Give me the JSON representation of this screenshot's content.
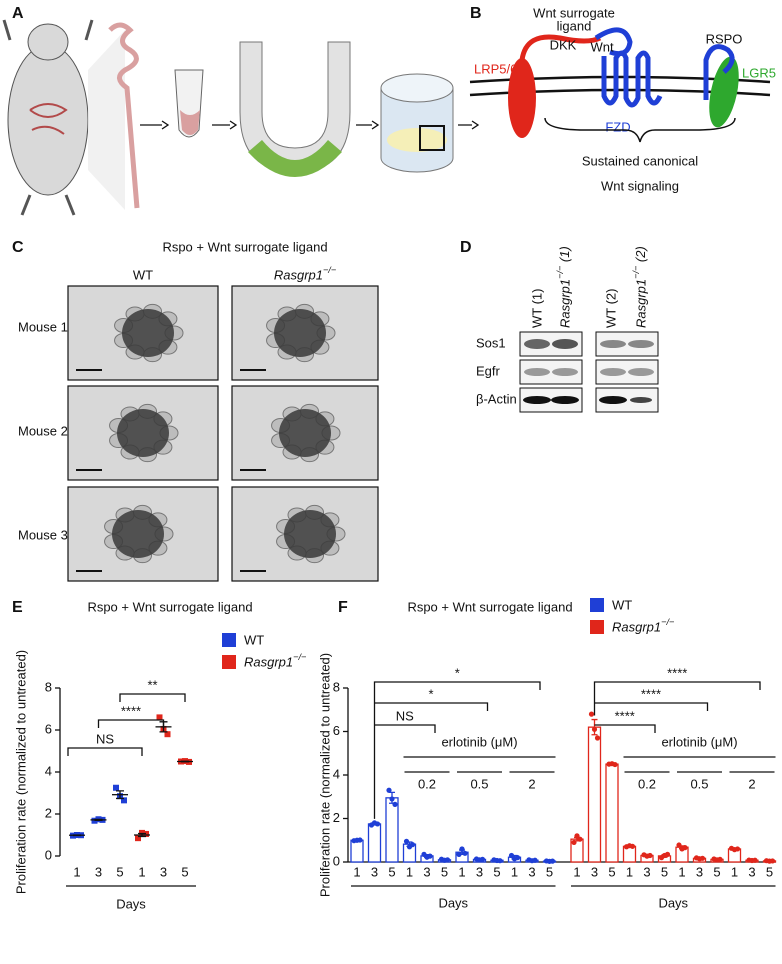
{
  "panels": {
    "A": {
      "label": "A"
    },
    "B": {
      "label": "B",
      "ligand": [
        "Wnt surrogate",
        "ligand"
      ],
      "dkk": "DKK",
      "wnt": "Wnt",
      "rspo": "RSPO",
      "lrp": "LRP5/6",
      "lgr5": "LGR5",
      "fzd": "FZD",
      "caption": [
        "Sustained canonical",
        "Wnt signaling"
      ]
    },
    "C": {
      "label": "C",
      "title": "Rspo + Wnt surrogate ligand",
      "columns": [
        "WT",
        "Rasgrp1−/−"
      ],
      "rows": [
        "Mouse 1",
        "Mouse 2",
        "Mouse 3"
      ]
    },
    "D": {
      "label": "D",
      "columns": [
        "WT (1)",
        "Rasgrp1−/− (1)",
        "WT (2)",
        "Rasgrp1−/− (2)"
      ],
      "rows": [
        "Sos1",
        "Egfr",
        "β-Actin"
      ]
    }
  },
  "chart_data": [
    {
      "type": "dot",
      "label": "E",
      "title": "Rspo + Wnt surrogate ligand",
      "y_label": "Proliferation rate (normalized to untreated)",
      "x_label": "Days",
      "categories": [
        "1",
        "3",
        "5"
      ],
      "ylim": [
        0,
        8
      ],
      "yticks": [
        0,
        2,
        4,
        6,
        8
      ],
      "significance": [
        "NS",
        "****",
        "**"
      ],
      "series": [
        {
          "name": "WT",
          "color": "#1f3fd6",
          "values": [
            0.99,
            1.72,
            2.92
          ],
          "errors": [
            0.01,
            0.02,
            0.18
          ],
          "points": [
            [
              0.97,
              1.0,
              0.99
            ],
            [
              1.68,
              1.75,
              1.72
            ],
            [
              3.25,
              2.85,
              2.65
            ]
          ]
        },
        {
          "name": "Rasgrp1−/−",
          "color": "#e0261b",
          "values": [
            1.0,
            6.15,
            4.5
          ],
          "errors": [
            0.07,
            0.24,
            0.01
          ],
          "points": [
            [
              0.85,
              1.1,
              1.05
            ],
            [
              6.6,
              6.05,
              5.8
            ],
            [
              4.5,
              4.52,
              4.48
            ]
          ]
        }
      ]
    },
    {
      "type": "bar",
      "label": "F",
      "title": "Rspo + Wnt surrogate ligand",
      "y_label": "Proliferation rate (normalized to untreated)",
      "x_label": "Days",
      "categories": [
        "1",
        "3",
        "5",
        "1",
        "3",
        "5",
        "1",
        "3",
        "5",
        "1",
        "3",
        "5"
      ],
      "treatment": "erlotinib (μM)",
      "doses": [
        "0.2",
        "0.5",
        "2"
      ],
      "ylim": [
        0,
        8
      ],
      "yticks": [
        0,
        2,
        4,
        6,
        8
      ],
      "series": [
        {
          "name": "WT",
          "color": "#1f3fd6",
          "values": [
            1.0,
            1.75,
            2.95,
            0.82,
            0.28,
            0.1,
            0.45,
            0.12,
            0.08,
            0.22,
            0.08,
            0.04
          ],
          "errors": [
            0.02,
            0.05,
            0.25,
            0.1,
            0.06,
            0.03,
            0.1,
            0.02,
            0.02,
            0.08,
            0.02,
            0.01
          ],
          "points": [
            [
              0.98,
              1.0,
              1.01
            ],
            [
              1.7,
              1.8,
              1.75
            ],
            [
              3.3,
              2.9,
              2.65
            ],
            [
              0.95,
              0.7,
              0.8
            ],
            [
              0.35,
              0.22,
              0.27
            ],
            [
              0.13,
              0.08,
              0.1
            ],
            [
              0.35,
              0.6,
              0.4
            ],
            [
              0.14,
              0.1,
              0.12
            ],
            [
              0.1,
              0.07,
              0.06
            ],
            [
              0.3,
              0.15,
              0.2
            ],
            [
              0.1,
              0.06,
              0.08
            ],
            [
              0.05,
              0.03,
              0.04
            ]
          ],
          "significance": [
            "NS",
            "*",
            "*"
          ]
        },
        {
          "name": "Rasgrp1−/−",
          "color": "#e0261b",
          "values": [
            1.05,
            6.2,
            4.5,
            0.72,
            0.3,
            0.28,
            0.68,
            0.17,
            0.12,
            0.6,
            0.08,
            0.05
          ],
          "errors": [
            0.08,
            0.35,
            0.02,
            0.03,
            0.03,
            0.06,
            0.06,
            0.02,
            0.02,
            0.03,
            0.01,
            0.01
          ],
          "points": [
            [
              0.9,
              1.2,
              1.05
            ],
            [
              6.8,
              6.1,
              5.7
            ],
            [
              4.5,
              4.52,
              4.48
            ],
            [
              0.7,
              0.75,
              0.72
            ],
            [
              0.33,
              0.27,
              0.3
            ],
            [
              0.2,
              0.3,
              0.35
            ],
            [
              0.78,
              0.6,
              0.66
            ],
            [
              0.19,
              0.15,
              0.17
            ],
            [
              0.14,
              0.1,
              0.12
            ],
            [
              0.63,
              0.57,
              0.6
            ],
            [
              0.09,
              0.07,
              0.08
            ],
            [
              0.06,
              0.04,
              0.05
            ]
          ],
          "significance": [
            "****",
            "****",
            "****"
          ]
        }
      ]
    }
  ]
}
